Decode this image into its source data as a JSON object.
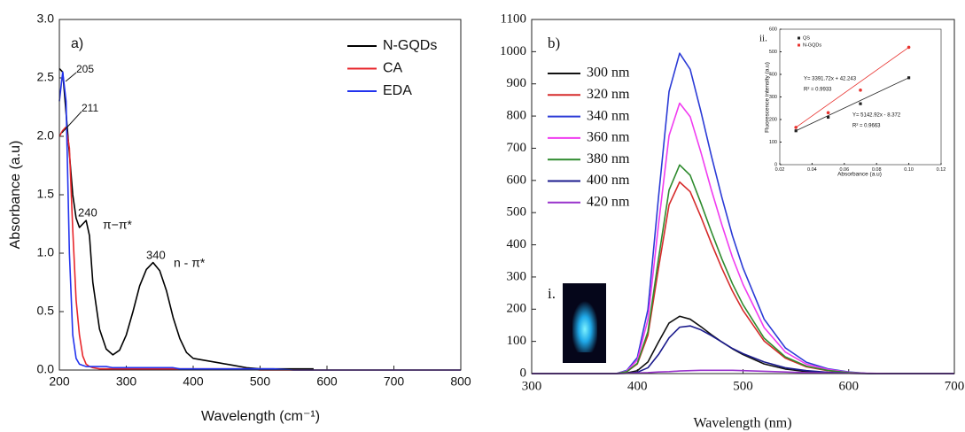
{
  "chart_data": [
    {
      "type": "line",
      "x_label": "Wavelength (cm⁻¹)",
      "y_label": "Absorbance (a.u)",
      "x": [
        200,
        205,
        210,
        215,
        220,
        225,
        230,
        235,
        240,
        245,
        250,
        260,
        270,
        280,
        290,
        300,
        310,
        320,
        330,
        340,
        350,
        360,
        370,
        380,
        390,
        400,
        420,
        440,
        460,
        480,
        500,
        520,
        550,
        580,
        600,
        650,
        700,
        750,
        800
      ],
      "series": [
        {
          "name": "N-GQDs",
          "color": "#000000",
          "values": [
            2.58,
            2.55,
            2.2,
            1.85,
            1.5,
            1.3,
            1.22,
            1.25,
            1.28,
            1.15,
            0.75,
            0.35,
            0.18,
            0.13,
            0.17,
            0.3,
            0.5,
            0.72,
            0.86,
            0.92,
            0.85,
            0.68,
            0.45,
            0.27,
            0.15,
            0.1,
            0.08,
            0.06,
            0.04,
            0.02,
            0.01,
            0.01,
            0.01,
            0.01,
            null,
            null,
            null,
            null,
            null
          ]
        },
        {
          "name": "CA",
          "color": "#e8262b",
          "values": [
            2.0,
            2.05,
            2.08,
            1.9,
            1.2,
            0.6,
            0.3,
            0.12,
            0.05,
            0.03,
            0.02,
            0.01,
            0.01,
            0.01,
            0.01,
            0.01,
            0.01,
            0.01,
            0.01,
            0.01,
            0.01,
            0.01,
            0.01,
            0.01,
            0.01,
            0.01,
            0.01,
            0.01,
            0.01,
            0.01,
            0,
            0,
            0,
            0,
            0,
            0,
            0,
            0,
            0
          ]
        },
        {
          "name": "EDA",
          "color": "#2233ee",
          "values": [
            2.3,
            2.55,
            2.3,
            1.0,
            0.3,
            0.1,
            0.05,
            0.04,
            0.03,
            0.03,
            0.03,
            0.03,
            0.03,
            0.02,
            0.02,
            0.02,
            0.02,
            0.02,
            0.02,
            0.02,
            0.02,
            0.02,
            0.02,
            0.01,
            0.01,
            0.01,
            0.01,
            0.01,
            0.01,
            0.01,
            0.01,
            0.01,
            0,
            0,
            0,
            0,
            0,
            0,
            0
          ]
        }
      ],
      "xlim": [
        200,
        800
      ],
      "xticks": [
        200,
        300,
        400,
        500,
        600,
        700,
        800
      ],
      "ylim": [
        0,
        3
      ],
      "yticks": [
        {
          "value": 0,
          "label": "0.0"
        },
        {
          "value": 0.5,
          "label": "0.5"
        },
        {
          "value": 1,
          "label": "1.0"
        },
        {
          "value": 1.5,
          "label": "1.5"
        },
        {
          "value": 2,
          "label": "2.0"
        },
        {
          "value": 2.5,
          "label": "2.5"
        },
        {
          "value": 3,
          "label": "3.0"
        }
      ],
      "legend": "upper right",
      "annotations": [
        "a)",
        "205",
        "211",
        "240",
        "π−π*",
        "340",
        "n - π*"
      ]
    },
    {
      "type": "line",
      "x_label": "Wavelength (nm)",
      "x": [
        300,
        320,
        340,
        360,
        380,
        390,
        400,
        410,
        420,
        430,
        440,
        450,
        460,
        470,
        480,
        490,
        500,
        520,
        540,
        560,
        580,
        600,
        620,
        640,
        660,
        680,
        700
      ],
      "series": [
        {
          "name": "300 nm",
          "color": "#111111",
          "values": [
            0,
            0,
            0,
            0,
            0,
            2,
            9,
            36,
            98,
            157,
            178,
            169,
            146,
            121,
            98,
            77,
            59,
            30,
            14,
            6,
            3,
            1,
            0,
            0,
            0,
            0,
            0
          ]
        },
        {
          "name": "320 nm",
          "color": "#d62b2b",
          "values": [
            0,
            0,
            0,
            0,
            0,
            6,
            30,
            119,
            327,
            524,
            595,
            565,
            488,
            405,
            327,
            256,
            196,
            101,
            48,
            21,
            9,
            3,
            0,
            0,
            0,
            0,
            0
          ]
        },
        {
          "name": "340 nm",
          "color": "#2b3bd6",
          "values": [
            0,
            0,
            0,
            0,
            0,
            10,
            50,
            199,
            547,
            876,
            995,
            945,
            816,
            677,
            547,
            428,
            328,
            169,
            80,
            35,
            15,
            5,
            0,
            0,
            0,
            0,
            0
          ]
        },
        {
          "name": "360 nm",
          "color": "#f03cf0",
          "values": [
            0,
            0,
            0,
            0,
            0,
            8,
            42,
            168,
            462,
            739,
            840,
            798,
            689,
            571,
            462,
            361,
            277,
            143,
            67,
            29,
            13,
            4,
            0,
            0,
            0,
            0,
            0
          ]
        },
        {
          "name": "380 nm",
          "color": "#2e8b2e",
          "values": [
            0,
            0,
            0,
            0,
            0,
            6,
            32,
            130,
            356,
            570,
            648,
            616,
            531,
            441,
            356,
            279,
            214,
            110,
            52,
            23,
            10,
            3,
            0,
            0,
            0,
            0,
            0
          ]
        },
        {
          "name": "400 nm",
          "color": "#1a1a8c",
          "values": [
            0,
            0,
            0,
            0,
            0,
            1,
            4,
            18,
            59,
            111,
            144,
            148,
            136,
            118,
            98,
            78,
            62,
            36,
            18,
            9,
            4,
            1,
            0,
            0,
            0,
            0,
            0
          ]
        },
        {
          "name": "420 nm",
          "color": "#9933cc",
          "values": [
            0,
            0,
            0,
            0,
            0,
            1,
            2,
            3,
            5,
            6,
            8,
            9,
            10,
            10,
            10,
            10,
            9,
            7,
            5,
            3,
            2,
            1,
            1,
            0,
            0,
            0,
            0
          ]
        }
      ],
      "xlim": [
        300,
        700
      ],
      "xticks": [
        300,
        400,
        500,
        600,
        700
      ],
      "ylim": [
        0,
        1100
      ],
      "yticks": [
        0,
        100,
        200,
        300,
        400,
        500,
        600,
        700,
        800,
        900,
        1000,
        1100
      ],
      "legend": "upper left",
      "annotations": [
        "b)",
        "i."
      ]
    },
    {
      "type": "scatter",
      "x_label": "Absorbance (a.u)",
      "y_label": "Fluorescence intensity (a.u)",
      "x": [
        0.03,
        0.05,
        0.07,
        0.1
      ],
      "series": [
        {
          "name": "QS",
          "color": "#222222",
          "values": [
            150,
            210,
            270,
            385
          ]
        },
        {
          "name": "N-GQDs",
          "color": "#e8332f",
          "values": [
            165,
            230,
            330,
            520
          ]
        }
      ],
      "xlim": [
        0.02,
        0.12
      ],
      "xticks": [
        {
          "value": 0.02,
          "label": "0.02"
        },
        {
          "value": 0.04,
          "label": "0.04"
        },
        {
          "value": 0.06,
          "label": "0.06"
        },
        {
          "value": 0.08,
          "label": "0.08"
        },
        {
          "value": 0.1,
          "label": "0.10"
        },
        {
          "value": 0.12,
          "label": "0.12"
        }
      ],
      "ylim": [
        0,
        600
      ],
      "yticks": [
        0,
        100,
        200,
        300,
        400,
        500,
        600
      ],
      "legend": "upper left",
      "annotations": [
        "ii.",
        "Y= 3391.72x + 42.243",
        "R² = 0.9933",
        "Y= 5142.92x - 8.372",
        "R² = 0.9663"
      ]
    }
  ]
}
